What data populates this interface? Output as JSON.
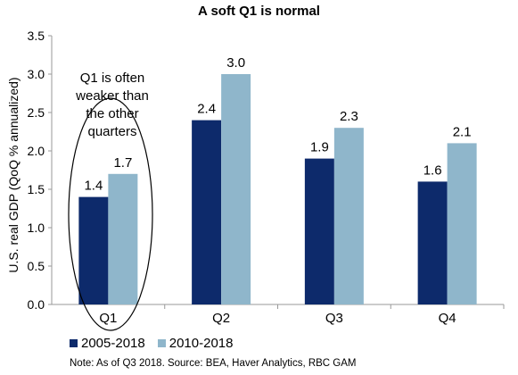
{
  "chart_data": {
    "type": "bar",
    "title": "A soft Q1 is normal",
    "ylabel": "U.S. real GDP (QoQ % annualized)",
    "xlabel": "",
    "categories": [
      "Q1",
      "Q2",
      "Q3",
      "Q4"
    ],
    "ylim": [
      0,
      3.5
    ],
    "yticks": [
      "0.0",
      "0.5",
      "1.0",
      "1.5",
      "2.0",
      "2.5",
      "3.0",
      "3.5"
    ],
    "grid": false,
    "legend_position": "bottom-left",
    "series": [
      {
        "name": "2005-2018",
        "values": [
          1.4,
          2.4,
          1.9,
          1.6
        ],
        "labels": [
          "1.4",
          "2.4",
          "1.9",
          "1.6"
        ],
        "color": "#0d2a6b"
      },
      {
        "name": "2010-2018",
        "values": [
          1.7,
          3.0,
          2.3,
          2.1
        ],
        "labels": [
          "1.7",
          "3.0",
          "2.3",
          "2.1"
        ],
        "color": "#8fb6cb"
      }
    ],
    "annotation": "Q1 is often weaker than the other quarters",
    "note": "Note: As of Q3 2018. Source: BEA, Haver Analytics, RBC GAM"
  }
}
